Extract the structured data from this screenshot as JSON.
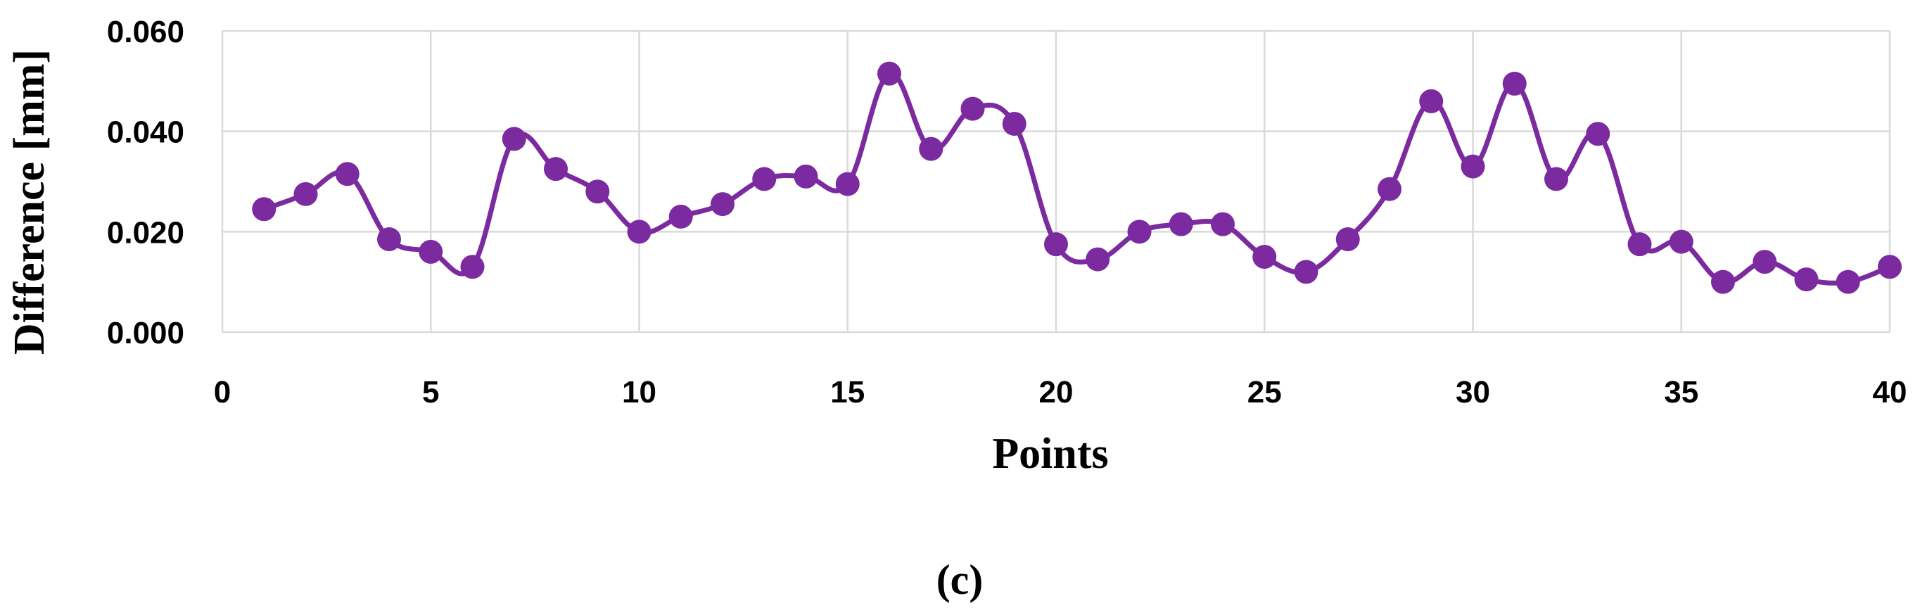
{
  "colors": {
    "series": "#7b2aa0",
    "grid": "#d9d9d9",
    "background": "#ffffff"
  },
  "caption": "(c)",
  "chart_data": {
    "type": "line",
    "xlabel": "Points",
    "ylabel": "Difference [mm]",
    "xlim": [
      0,
      40
    ],
    "ylim": [
      0,
      0.06
    ],
    "x_ticks": [
      0,
      5,
      10,
      15,
      20,
      25,
      30,
      35,
      40
    ],
    "y_ticks": [
      0.0,
      0.02,
      0.04,
      0.06
    ],
    "y_tick_labels": [
      "0.000",
      "0.020",
      "0.040",
      "0.060"
    ],
    "grid": "vertical and horizontal",
    "legend": "none",
    "series": [
      {
        "x": [
          1,
          2,
          3,
          4,
          5,
          6,
          7,
          8,
          9,
          10,
          11,
          12,
          13,
          14,
          15,
          16,
          17,
          18,
          19,
          20,
          21,
          22,
          23,
          24,
          25,
          26,
          27,
          28,
          29,
          30,
          31,
          32,
          33,
          34,
          35,
          36,
          37,
          38,
          39,
          40
        ],
        "values": [
          0.0245,
          0.0275,
          0.0315,
          0.0185,
          0.016,
          0.013,
          0.0385,
          0.0325,
          0.028,
          0.02,
          0.023,
          0.0255,
          0.0305,
          0.031,
          0.0295,
          0.0515,
          0.0365,
          0.0445,
          0.0415,
          0.0175,
          0.0145,
          0.02,
          0.0215,
          0.0215,
          0.015,
          0.012,
          0.0185,
          0.0285,
          0.046,
          0.033,
          0.0495,
          0.0305,
          0.0395,
          0.0175,
          0.018,
          0.01,
          0.014,
          0.0105,
          0.01,
          0.013
        ]
      }
    ]
  }
}
